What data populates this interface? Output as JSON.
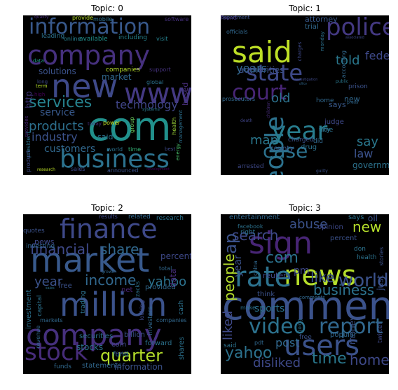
{
  "panels": [
    {
      "title": "Topic: 0",
      "words": [
        {
          "text": "company",
          "rot": 0,
          "color": "#46307e"
        },
        {
          "text": "information",
          "rot": 0,
          "color": "#38598c"
        },
        {
          "text": "new",
          "rot": 0,
          "color": "#3e4989"
        },
        {
          "text": "www",
          "rot": 0,
          "color": "#443983"
        },
        {
          "text": "com",
          "rot": 0,
          "color": "#21918c"
        },
        {
          "text": "business",
          "rot": 0,
          "color": "#2c728e"
        },
        {
          "text": "services",
          "rot": 0,
          "color": "#26828e"
        },
        {
          "text": "products",
          "rot": 0,
          "color": "#2d708e"
        },
        {
          "text": "industry",
          "rot": 0,
          "color": "#3b528b"
        },
        {
          "text": "customers",
          "rot": 0,
          "color": "#31688e"
        },
        {
          "text": "technology",
          "rot": 0,
          "color": "#404588"
        },
        {
          "text": "solutions",
          "rot": 0,
          "color": "#3b528b"
        },
        {
          "text": "market",
          "rot": 0,
          "color": "#31688e"
        },
        {
          "text": "http",
          "rot": 90,
          "color": "#453882"
        },
        {
          "text": "service",
          "rot": 0,
          "color": "#38598c"
        },
        {
          "text": "companies",
          "rot": 0,
          "color": "#b5de2b"
        },
        {
          "text": "said",
          "rot": 0,
          "color": "#2c728e"
        },
        {
          "text": "based",
          "rot": 90,
          "color": "#472d7b"
        },
        {
          "text": "power",
          "rot": 0,
          "color": "#c2df23"
        },
        {
          "text": "world",
          "rot": 0,
          "color": "#2c728e"
        },
        {
          "text": "time",
          "rot": 0,
          "color": "#35b779"
        },
        {
          "text": "leading",
          "rot": 0,
          "color": "#2c728e"
        },
        {
          "text": "available",
          "rot": 0,
          "color": "#21918c"
        },
        {
          "text": "including",
          "rot": 0,
          "color": "#26828e"
        },
        {
          "text": "online",
          "rot": 0,
          "color": "#277f8e"
        },
        {
          "text": "visit",
          "rot": 0,
          "color": "#26828e"
        },
        {
          "text": "data",
          "rot": 0,
          "color": "#1fa088"
        },
        {
          "text": "term",
          "rot": 0,
          "color": "#b5de2b"
        },
        {
          "text": "long",
          "rot": 0,
          "color": "#3e4989"
        },
        {
          "text": "high",
          "rot": 0,
          "color": "#440154"
        },
        {
          "text": "today",
          "rot": 0,
          "color": "#472c7a"
        },
        {
          "text": "support",
          "rot": 0,
          "color": "#46337f"
        },
        {
          "text": "global",
          "rot": 0,
          "color": "#2c728e"
        },
        {
          "text": "health",
          "rot": 90,
          "color": "#9fda3a"
        },
        {
          "text": "group",
          "rot": 90,
          "color": "#6ccd5a"
        },
        {
          "text": "systems",
          "rot": 0,
          "color": "#2a788e"
        },
        {
          "text": "best",
          "rot": 0,
          "color": "#3e4989"
        },
        {
          "text": "energy",
          "rot": 90,
          "color": "#4ac16d"
        },
        {
          "text": "management",
          "rot": 90,
          "color": "#2d708e"
        },
        {
          "text": "president",
          "rot": 90,
          "color": "#2c728e"
        },
        {
          "text": "product",
          "rot": 90,
          "color": "#3e4989"
        },
        {
          "text": "provides",
          "rot": 90,
          "color": "#482475"
        },
        {
          "text": "sales",
          "rot": 0,
          "color": "#3e4989"
        },
        {
          "text": "announced",
          "rot": 0,
          "color": "#3b528b"
        },
        {
          "text": "development",
          "rot": 0,
          "color": "#440154"
        },
        {
          "text": "research",
          "rot": 0,
          "color": "#bddf26"
        },
        {
          "text": "mobile",
          "rot": 0,
          "color": "#2d708e"
        },
        {
          "text": "software",
          "rot": 0,
          "color": "#46307e"
        },
        {
          "text": "provide",
          "rot": 0,
          "color": "#b5de2b"
        },
        {
          "text": "quality",
          "rot": 0,
          "color": "#472c7a"
        }
      ]
    },
    {
      "title": "Topic: 1",
      "words": [
        {
          "text": "said",
          "rot": 0,
          "color": "#bddf26"
        },
        {
          "text": "police",
          "rot": 0,
          "color": "#443983"
        },
        {
          "text": "state",
          "rot": 0,
          "color": "#3e4989"
        },
        {
          "text": "court",
          "rot": 0,
          "color": "#482576"
        },
        {
          "text": "people",
          "rot": 90,
          "color": "#2c728e"
        },
        {
          "text": "year",
          "rot": 0,
          "color": "#287d8e"
        },
        {
          "text": "told",
          "rot": 0,
          "color": "#2a788e"
        },
        {
          "text": "years",
          "rot": 0,
          "color": "#31688e"
        },
        {
          "text": "case",
          "rot": 0,
          "color": "#2c728e"
        },
        {
          "text": "man",
          "rot": 0,
          "color": "#2a788e"
        },
        {
          "text": "old",
          "rot": 0,
          "color": "#2c728e"
        },
        {
          "text": "federal",
          "rot": 0,
          "color": "#3e4989"
        },
        {
          "text": "say",
          "rot": 0,
          "color": "#2a788e"
        },
        {
          "text": "law",
          "rot": 0,
          "color": "#3b528b"
        },
        {
          "text": "new",
          "rot": 0,
          "color": "#31688e"
        },
        {
          "text": "government",
          "rot": 0,
          "color": "#2c728e"
        },
        {
          "text": "attorney",
          "rot": 0,
          "color": "#38598c"
        },
        {
          "text": "trial",
          "rot": 0,
          "color": "#31688e"
        },
        {
          "text": "officials",
          "rot": 0,
          "color": "#31688e"
        },
        {
          "text": "authorities",
          "rot": 0,
          "color": "#3b528b"
        },
        {
          "text": "according",
          "rot": 90,
          "color": "#31688e"
        },
        {
          "text": "prison",
          "rot": 0,
          "color": "#3b528b"
        },
        {
          "text": "says",
          "rot": 0,
          "color": "#38598c"
        },
        {
          "text": "judge",
          "rot": 0,
          "color": "#3e4989"
        },
        {
          "text": "time",
          "rot": 0,
          "color": "#2c728e"
        },
        {
          "text": "city",
          "rot": 0,
          "color": "#2c728e"
        },
        {
          "text": "did",
          "rot": 0,
          "color": "#31688e"
        },
        {
          "text": "drug",
          "rot": 0,
          "color": "#2c728e"
        },
        {
          "text": "county",
          "rot": 0,
          "color": "#38598c"
        },
        {
          "text": "charged",
          "rot": 0,
          "color": "#3b528b"
        },
        {
          "text": "arrested",
          "rot": 0,
          "color": "#3e4989"
        },
        {
          "text": "home",
          "rot": 0,
          "color": "#31688e"
        },
        {
          "text": "death",
          "rot": 0,
          "color": "#404588"
        },
        {
          "text": "children",
          "rot": 90,
          "color": "#472c7a"
        },
        {
          "text": "charges",
          "rot": 90,
          "color": "#3e4989"
        },
        {
          "text": "monday",
          "rot": 90,
          "color": "#2c728e"
        },
        {
          "text": "department",
          "rot": 0,
          "color": "#3b528b"
        },
        {
          "text": "prosecutors",
          "rot": 0,
          "color": "#31688e"
        },
        {
          "text": "public",
          "rot": 0,
          "color": "#2a788e"
        },
        {
          "text": "associated",
          "rot": 0,
          "color": "#3e4989"
        },
        {
          "text": "press",
          "rot": 0,
          "color": "#31688e"
        },
        {
          "text": "guilty",
          "rot": 0,
          "color": "#3b528b"
        },
        {
          "text": "investigation",
          "rot": 0,
          "color": "#3e4989"
        },
        {
          "text": "office",
          "rot": 0,
          "color": "#31688e"
        },
        {
          "text": "found",
          "rot": 0,
          "color": "#46307e"
        }
      ]
    },
    {
      "title": "Topic: 2",
      "words": [
        {
          "text": "finance",
          "rot": 0,
          "color": "#3e4989"
        },
        {
          "text": "market",
          "rot": 0,
          "color": "#38598c"
        },
        {
          "text": "million",
          "rot": 0,
          "color": "#3b528b"
        },
        {
          "text": "company",
          "rot": 0,
          "color": "#46307e"
        },
        {
          "text": "stock",
          "rot": 0,
          "color": "#472c7a"
        },
        {
          "text": "financial",
          "rot": 0,
          "color": "#3e4989"
        },
        {
          "text": "share",
          "rot": 0,
          "color": "#31688e"
        },
        {
          "text": "income",
          "rot": 0,
          "color": "#31688e"
        },
        {
          "text": "year",
          "rot": 0,
          "color": "#3b528b"
        },
        {
          "text": "yahoo",
          "rot": 0,
          "color": "#2c728e"
        },
        {
          "text": "quarter",
          "rot": 0,
          "color": "#b5de2b"
        },
        {
          "text": "percent",
          "rot": 0,
          "color": "#3e4989"
        },
        {
          "text": "data",
          "rot": 90,
          "color": "#472d7b"
        },
        {
          "text": "news",
          "rot": 0,
          "color": "#3e4989"
        },
        {
          "text": "quotes",
          "rot": 0,
          "color": "#3b528b"
        },
        {
          "text": "investing",
          "rot": 0,
          "color": "#31688e"
        },
        {
          "text": "investment",
          "rot": 90,
          "color": "#2c728e"
        },
        {
          "text": "results",
          "rot": 0,
          "color": "#3e4989"
        },
        {
          "text": "related",
          "rot": 0,
          "color": "#31688e"
        },
        {
          "text": "research",
          "rot": 0,
          "color": "#2c728e"
        },
        {
          "text": "trading",
          "rot": 90,
          "color": "#2c728e"
        },
        {
          "text": "securities",
          "rot": 0,
          "color": "#2c728e"
        },
        {
          "text": "billion",
          "rot": 0,
          "color": "#3b528b"
        },
        {
          "text": "stocks",
          "rot": 0,
          "color": "#2c728e"
        },
        {
          "text": "com",
          "rot": 0,
          "color": "#3e4989"
        },
        {
          "text": "forward",
          "rot": 0,
          "color": "#2c728e"
        },
        {
          "text": "fund",
          "rot": 0,
          "color": "#2a788e"
        },
        {
          "text": "funds",
          "rot": 0,
          "color": "#31688e"
        },
        {
          "text": "statements",
          "rot": 0,
          "color": "#31688e"
        },
        {
          "text": "information",
          "rot": 0,
          "color": "#3b528b"
        },
        {
          "text": "shares",
          "rot": 90,
          "color": "#2c728e"
        },
        {
          "text": "investors",
          "rot": 90,
          "color": "#31688e"
        },
        {
          "text": "provided",
          "rot": 0,
          "color": "#31688e"
        },
        {
          "text": "zacks",
          "rot": 90,
          "color": "#2c728e"
        },
        {
          "text": "cash",
          "rot": 90,
          "color": "#2c728e"
        },
        {
          "text": "capital",
          "rot": 90,
          "color": "#2c728e"
        },
        {
          "text": "markets",
          "rot": 0,
          "color": "#31688e"
        },
        {
          "text": "looking",
          "rot": 90,
          "color": "#3e4989"
        },
        {
          "text": "net",
          "rot": 0,
          "color": "#482576"
        },
        {
          "text": "free",
          "rot": 0,
          "color": "#3b528b"
        },
        {
          "text": "total",
          "rot": 0,
          "color": "#31688e"
        },
        {
          "text": "companies",
          "rot": 0,
          "color": "#31688e"
        },
        {
          "text": "growth",
          "rot": 0,
          "color": "#31688e"
        },
        {
          "text": "report",
          "rot": 0,
          "color": "#3e4989"
        },
        {
          "text": "sales",
          "rot": 0,
          "color": "#2c728e"
        },
        {
          "text": "revenue",
          "rot": 90,
          "color": "#31688e"
        }
      ]
    },
    {
      "title": "Topic: 3",
      "words": [
        {
          "text": "sign",
          "rot": 0,
          "color": "#482576"
        },
        {
          "text": "news",
          "rot": 0,
          "color": "#b5de2b"
        },
        {
          "text": "comment",
          "rot": 0,
          "color": "#3b528b"
        },
        {
          "text": "rate",
          "rot": 0,
          "color": "#2c728e"
        },
        {
          "text": "users",
          "rot": 0,
          "color": "#3b528b"
        },
        {
          "text": "video",
          "rot": 0,
          "color": "#2c728e"
        },
        {
          "text": "report",
          "rot": 0,
          "color": "#31688e"
        },
        {
          "text": "com",
          "rot": 0,
          "color": "#2c728e"
        },
        {
          "text": "world",
          "rot": 0,
          "color": "#3b528b"
        },
        {
          "text": "search",
          "rot": 0,
          "color": "#3e4989"
        },
        {
          "text": "abuse",
          "rot": 0,
          "color": "#3b528b"
        },
        {
          "text": "new",
          "rot": 0,
          "color": "#b5de2b"
        },
        {
          "text": "ap",
          "rot": 90,
          "color": "#3b528b"
        },
        {
          "text": "like",
          "rot": 0,
          "color": "#3b528b"
        },
        {
          "text": "business",
          "rot": 0,
          "color": "#2c728e"
        },
        {
          "text": "yahoo",
          "rot": 0,
          "color": "#2c728e"
        },
        {
          "text": "post",
          "rot": 0,
          "color": "#31688e"
        },
        {
          "text": "time",
          "rot": 0,
          "color": "#2a788e"
        },
        {
          "text": "home",
          "rot": 0,
          "color": "#3e4989"
        },
        {
          "text": "disliked",
          "rot": 0,
          "color": "#3e4989"
        },
        {
          "text": "money",
          "rot": 90,
          "color": "#3b528b"
        },
        {
          "text": "just",
          "rot": 90,
          "color": "#3b528b"
        },
        {
          "text": "liked",
          "rot": 90,
          "color": "#3e4989"
        },
        {
          "text": "people",
          "rot": 90,
          "color": "#b5de2b"
        },
        {
          "text": "year",
          "rot": 90,
          "color": "#3b528b"
        },
        {
          "text": "sports",
          "rot": 0,
          "color": "#2c728e"
        },
        {
          "text": "pm",
          "rot": 0,
          "color": "#3e4989"
        },
        {
          "text": "percent",
          "rot": 0,
          "color": "#3b528b"
        },
        {
          "text": "opinion",
          "rot": 0,
          "color": "#3e4989"
        },
        {
          "text": "says",
          "rot": 0,
          "color": "#2c728e"
        },
        {
          "text": "oil",
          "rot": 0,
          "color": "#3b528b"
        },
        {
          "text": "entertainment",
          "rot": 0,
          "color": "#31688e"
        },
        {
          "text": "facebook",
          "rot": 0,
          "color": "#2c728e"
        },
        {
          "text": "right",
          "rot": 0,
          "color": "#2c728e"
        },
        {
          "text": "reuters",
          "rot": 0,
          "color": "#3e4989"
        },
        {
          "text": "china",
          "rot": 90,
          "color": "#31688e"
        },
        {
          "text": "think",
          "rot": 0,
          "color": "#3b528b"
        },
        {
          "text": "make",
          "rot": 0,
          "color": "#2c728e"
        },
        {
          "text": "said",
          "rot": 0,
          "color": "#2c728e"
        },
        {
          "text": "pdt",
          "rot": 0,
          "color": "#31688e"
        },
        {
          "text": "free",
          "rot": 0,
          "color": "#3b528b"
        },
        {
          "text": "popular",
          "rot": 0,
          "color": "#31688e"
        },
        {
          "text": "going",
          "rot": 90,
          "color": "#2c728e"
        },
        {
          "text": "twitter",
          "rot": 90,
          "color": "#3e4989"
        },
        {
          "text": "stories",
          "rot": 90,
          "color": "#3b528b"
        },
        {
          "text": "health",
          "rot": 0,
          "color": "#2c728e"
        },
        {
          "text": "comments",
          "rot": 0,
          "color": "#31688e"
        },
        {
          "text": "don",
          "rot": 0,
          "color": "#2c728e"
        }
      ]
    }
  ]
}
